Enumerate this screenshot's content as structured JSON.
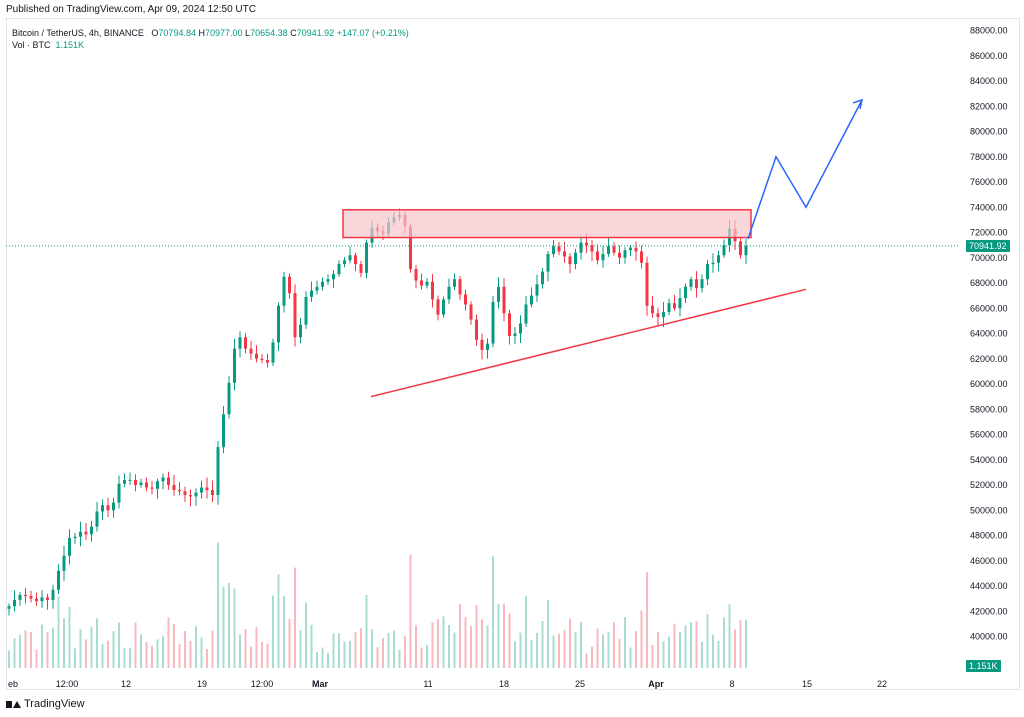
{
  "header": {
    "published": "Published on TradingView.com, Apr 09, 2024 12:50 UTC"
  },
  "legend": {
    "symbol": "Bitcoin / TetherUS, 4h, BINANCE",
    "open_label": "O",
    "open": "70794.84",
    "high_label": "H",
    "high": "70977.00",
    "low_label": "L",
    "low": "70654.38",
    "close_label": "C",
    "close": "70941.92",
    "change": "+147.07 (+0.21%)",
    "volume_label": "Vol · BTC",
    "volume": "1.151K"
  },
  "footer": {
    "brand": "TradingView"
  },
  "colors": {
    "up": "#089981",
    "down": "#f23645",
    "zone_fill": "#f7c5ca",
    "zone_stroke": "#f23645",
    "projection": "#2962ff"
  },
  "chart_data": {
    "type": "candlestick",
    "price_axis": {
      "min": 38000,
      "max": 88000,
      "ticks": [
        88000,
        86000,
        84000,
        82000,
        80000,
        78000,
        76000,
        74000,
        72000,
        70000,
        68000,
        66000,
        64000,
        62000,
        60000,
        58000,
        56000,
        54000,
        52000,
        50000,
        48000,
        46000,
        44000,
        42000,
        40000
      ],
      "tick_labels": [
        "88000.00",
        "86000.00",
        "84000.00",
        "82000.00",
        "80000.00",
        "78000.00",
        "76000.00",
        "74000.00",
        "72000.00",
        "70000.00",
        "68000.00",
        "66000.00",
        "64000.00",
        "62000.00",
        "60000.00",
        "58000.00",
        "56000.00",
        "54000.00",
        "52000.00",
        "50000.00",
        "48000.00",
        "46000.00",
        "44000.00",
        "42000.00",
        "40000.00"
      ]
    },
    "time_axis": {
      "labels": [
        "eb",
        "12:00",
        "12",
        "19",
        "12:00",
        "Mar",
        "11",
        "18",
        "25",
        "Apr",
        "8",
        "15",
        "22"
      ],
      "bold": [
        false,
        false,
        false,
        false,
        false,
        true,
        false,
        false,
        false,
        true,
        false,
        false,
        false
      ]
    },
    "last_price": "70941.92",
    "volume_badge": "1.151K",
    "closes": [
      42400,
      42900,
      43300,
      43200,
      43000,
      42800,
      43100,
      42900,
      43700,
      45200,
      46400,
      47800,
      47900,
      48300,
      48100,
      48700,
      49900,
      50400,
      50000,
      50600,
      52100,
      52400,
      52400,
      52000,
      52200,
      51800,
      51700,
      52300,
      52600,
      52000,
      51600,
      51500,
      51200,
      51100,
      51400,
      51800,
      51600,
      51200,
      55000,
      57600,
      60100,
      62800,
      63700,
      62800,
      62400,
      62000,
      61900,
      61700,
      63300,
      66200,
      68500,
      67200,
      63700,
      64700,
      66900,
      67400,
      67700,
      68100,
      68300,
      68700,
      69500,
      69800,
      70200,
      69500,
      68800,
      71200,
      72400,
      72100,
      71900,
      72800,
      73200,
      73400,
      72500,
      69100,
      68200,
      67800,
      68100,
      66700,
      65500,
      66700,
      67700,
      68300,
      67100,
      66300,
      65100,
      63500,
      62700,
      63200,
      66500,
      67700,
      65600,
      63800,
      64000,
      64800,
      66300,
      67000,
      67900,
      68900,
      70300,
      70900,
      70500,
      70100,
      69500,
      70400,
      71200,
      71000,
      70500,
      69800,
      70300,
      70900,
      70400,
      70000,
      70600,
      70800,
      70500,
      69600,
      66200,
      65600,
      65300,
      65700,
      66400,
      66000,
      66800,
      67700,
      68300,
      67600,
      68300,
      69500,
      69600,
      70200,
      71000,
      72300,
      71300,
      70200,
      70942
    ],
    "projection_path": [
      [
        71500,
        "8"
      ],
      [
        78000,
        "10"
      ],
      [
        74000,
        "15"
      ],
      [
        82500,
        "20"
      ]
    ],
    "resistance_zone": {
      "low": 71600,
      "high": 73800
    },
    "support_line": {
      "start": 59000,
      "end": 67500
    }
  }
}
